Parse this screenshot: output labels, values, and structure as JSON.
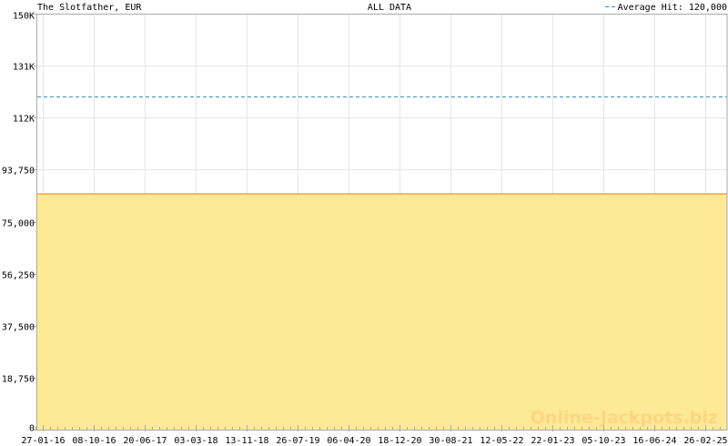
{
  "chart_data": {
    "type": "area",
    "title": "The Slotfather, EUR",
    "subtitle": "ALL DATA",
    "legend": {
      "label": "Average Hit: 120,000",
      "placement": "top-right",
      "style": "dashed"
    },
    "x_tick_labels": [
      "27-01-16",
      "08-10-16",
      "20-06-17",
      "03-03-18",
      "13-11-18",
      "26-07-19",
      "06-04-20",
      "18-12-20",
      "30-08-21",
      "12-05-22",
      "22-01-23",
      "05-10-23",
      "16-06-24",
      "26-02-25"
    ],
    "y_ticks": [
      0,
      18750,
      37500,
      56250,
      75000,
      93750,
      112500,
      131250,
      150000
    ],
    "y_tick_labels": [
      "0",
      "18,750",
      "37,500",
      "56,250",
      "75,000",
      "93,750",
      "112K",
      "131K",
      "150K"
    ],
    "ylim": [
      0,
      150000
    ],
    "series": [
      {
        "values_start": 85000,
        "values_end": 85000
      }
    ],
    "average_hit": 120000,
    "grid": true,
    "watermark": "Online-Jackpots.biz",
    "colors": {
      "fill": "#feea94",
      "line": "#f39a1e",
      "average": "#3a8fc0",
      "grid": "#e6e6e6",
      "axis": "#aaaaaa"
    }
  }
}
